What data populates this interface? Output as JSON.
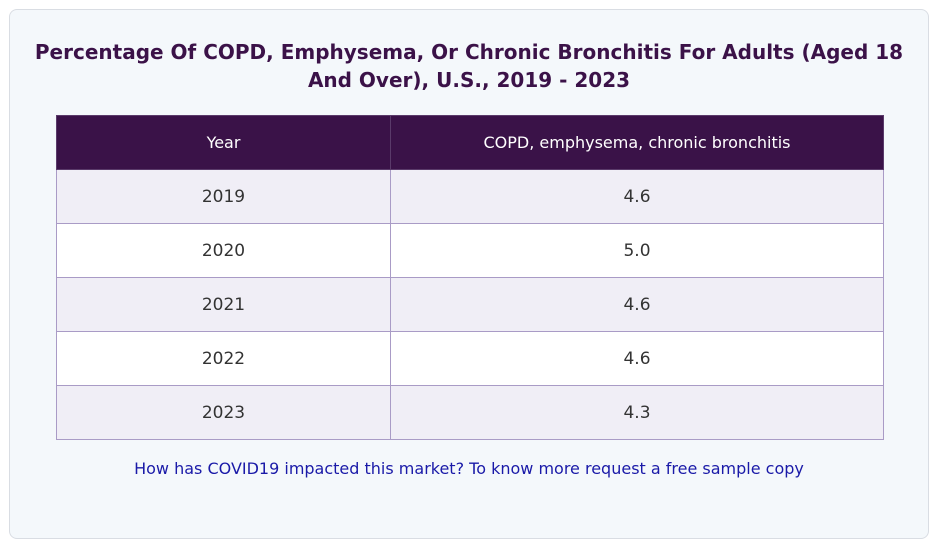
{
  "chart_data": {
    "type": "table",
    "title": "Percentage Of COPD, Emphysema, Or Chronic Bronchitis For Adults (Aged 18 And Over), U.S., 2019 - 2023",
    "columns": [
      "Year",
      "COPD, emphysema, chronic bronchitis"
    ],
    "rows": [
      [
        "2019",
        "4.6"
      ],
      [
        "2020",
        "5.0"
      ],
      [
        "2021",
        "4.6"
      ],
      [
        "2022",
        "4.6"
      ],
      [
        "2023",
        "4.3"
      ]
    ]
  },
  "footer": {
    "link_text": "How has COVID19 impacted this market? To know more request a free sample copy"
  },
  "colors": {
    "header_bg": "#3a1248",
    "title": "#3b1248",
    "link": "#1a1aa8",
    "row_alt": "#f0eef6"
  }
}
